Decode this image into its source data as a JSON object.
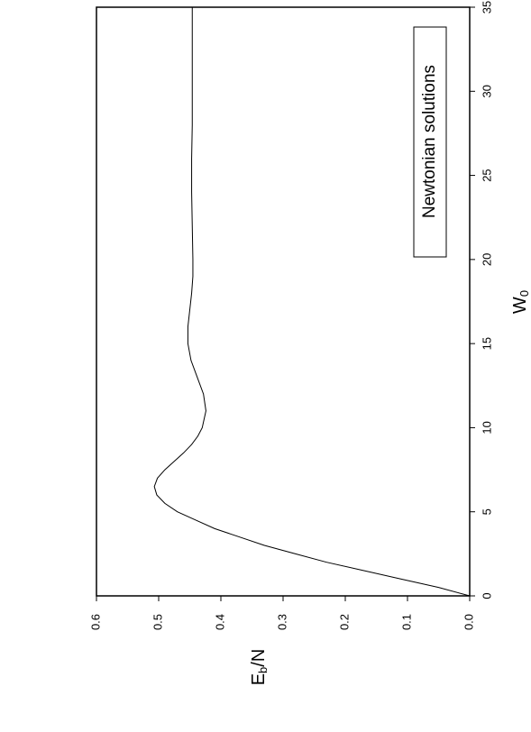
{
  "chart_data": {
    "type": "line",
    "xlabel": "W",
    "xlabel_subscript": "0",
    "ylabel": "E",
    "ylabel_subscript": "b",
    "ylabel_suffix": "/N",
    "xlim": [
      0,
      35
    ],
    "xticks": [
      0,
      5,
      10,
      15,
      20,
      25,
      30,
      35
    ],
    "ylim": [
      0,
      0.6
    ],
    "yticks": [
      {
        "value": 0,
        "label": "0.0"
      },
      0.1,
      0.2,
      0.3,
      0.4,
      0.5,
      0.6
    ],
    "x": [
      0,
      0.5,
      1,
      1.5,
      2,
      2.5,
      3,
      3.5,
      4,
      4.5,
      5,
      5.5,
      6,
      6.5,
      7,
      7.5,
      8,
      8.5,
      9,
      9.5,
      10,
      11,
      12,
      13,
      14,
      15,
      16,
      17,
      18,
      19,
      20,
      22,
      24,
      26,
      28,
      30,
      32,
      35
    ],
    "series": [
      {
        "name": "Newtonian solutions",
        "color": "#000000",
        "values": [
          0,
          0.05,
          0.11,
          0.17,
          0.23,
          0.28,
          0.33,
          0.37,
          0.41,
          0.44,
          0.47,
          0.49,
          0.503,
          0.507,
          0.502,
          0.49,
          0.475,
          0.46,
          0.447,
          0.437,
          0.43,
          0.424,
          0.428,
          0.438,
          0.448,
          0.453,
          0.453,
          0.45,
          0.447,
          0.445,
          0.445,
          0.446,
          0.447,
          0.447,
          0.446,
          0.446,
          0.446,
          0.446
        ]
      }
    ]
  }
}
